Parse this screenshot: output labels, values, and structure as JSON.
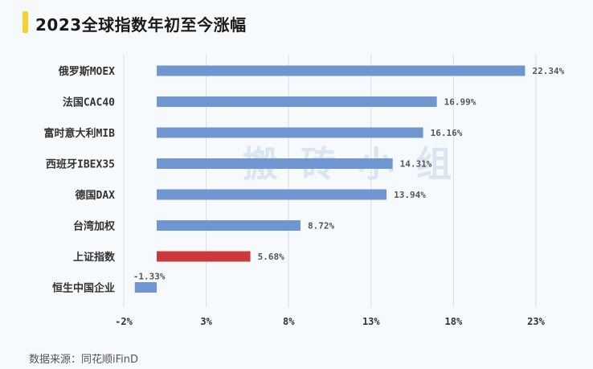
{
  "title": "2023全球指数年初至今涨幅",
  "watermark": "搬砖小组",
  "source": "数据来源：同花顺iFinD",
  "colors": {
    "default_bar": "#7096d1",
    "highlight_bar": "#cb3a3a",
    "title_accent": "#f5d232"
  },
  "chart_data": {
    "type": "bar",
    "orientation": "horizontal",
    "categories": [
      "俄罗斯MOEX",
      "法国CAC40",
      "富时意大利MIB",
      "西班牙IBEX35",
      "德国DAX",
      "台湾加权",
      "上证指数",
      "恒生中国企业"
    ],
    "values": [
      22.34,
      16.99,
      16.16,
      14.31,
      13.94,
      8.72,
      5.68,
      -1.33
    ],
    "value_labels": [
      "22.34%",
      "16.99%",
      "16.16%",
      "14.31%",
      "13.94%",
      "8.72%",
      "5.68%",
      "-1.33%"
    ],
    "highlight": "上证指数",
    "xlim": [
      -2,
      23
    ],
    "xticks": [
      -2,
      3,
      8,
      13,
      18,
      23
    ],
    "xtick_labels": [
      "-2%",
      "3%",
      "8%",
      "13%",
      "18%",
      "23%"
    ],
    "grid": "vertical",
    "xlabel": "",
    "ylabel": ""
  }
}
